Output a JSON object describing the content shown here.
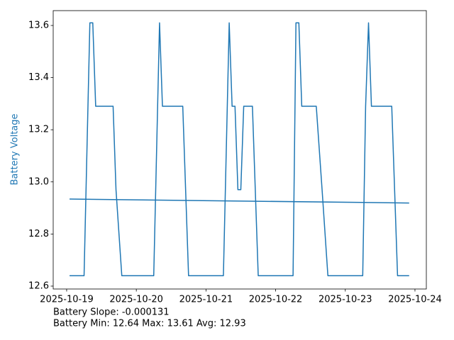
{
  "chart_data": {
    "type": "line",
    "y_label": "Battery Voltage",
    "y_label_color": "#1f77b4",
    "notes": [
      "Battery Slope: -0.000131",
      "Battery Min: 12.64 Max: 13.61 Avg: 12.93"
    ],
    "series": [
      {
        "color": "#1f77b4",
        "x": [
          "2025-10-19 01:00",
          "2025-10-19 06:00",
          "2025-10-19 08:00",
          "2025-10-19 09:00",
          "2025-10-19 10:00",
          "2025-10-19 16:00",
          "2025-10-19 17:00",
          "2025-10-19 19:00",
          "2025-10-20 06:00",
          "2025-10-20 08:00",
          "2025-10-20 09:00",
          "2025-10-20 16:00",
          "2025-10-20 18:00",
          "2025-10-21 06:00",
          "2025-10-21 08:00",
          "2025-10-21 09:00",
          "2025-10-21 10:00",
          "2025-10-21 11:00",
          "2025-10-21 12:00",
          "2025-10-21 13:00",
          "2025-10-21 16:00",
          "2025-10-21 18:00",
          "2025-10-22 06:00",
          "2025-10-22 07:00",
          "2025-10-22 08:00",
          "2025-10-22 09:00",
          "2025-10-22 14:00",
          "2025-10-22 16:00",
          "2025-10-22 18:00",
          "2025-10-23 06:00",
          "2025-10-23 07:00",
          "2025-10-23 08:00",
          "2025-10-23 09:00",
          "2025-10-23 16:00",
          "2025-10-23 18:00",
          "2025-10-23 22:00"
        ],
        "values": [
          12.64,
          12.64,
          13.61,
          13.61,
          13.29,
          13.29,
          12.97,
          12.64,
          12.64,
          13.61,
          13.29,
          13.29,
          12.64,
          12.64,
          13.61,
          13.29,
          13.29,
          12.97,
          12.97,
          13.29,
          13.29,
          12.64,
          12.64,
          13.61,
          13.61,
          13.29,
          13.29,
          12.97,
          12.64,
          12.64,
          13.29,
          13.61,
          13.29,
          13.29,
          12.64,
          12.64
        ]
      },
      {
        "color": "#1f77b4",
        "x": [
          "2025-10-19 01:00",
          "2025-10-23 22:00"
        ],
        "values": [
          12.934,
          12.919
        ]
      }
    ],
    "xlim": [
      "2025-10-18 19:22",
      "2025-10-24 03:55"
    ],
    "xticks": [
      "2025-10-19",
      "2025-10-20",
      "2025-10-21",
      "2025-10-22",
      "2025-10-23",
      "2025-10-24"
    ],
    "ylim": [
      12.589,
      13.657
    ],
    "yticks": [
      12.6,
      12.8,
      {
        "value": 13,
        "label": "13.0"
      },
      13.2,
      13.4,
      13.6
    ]
  }
}
